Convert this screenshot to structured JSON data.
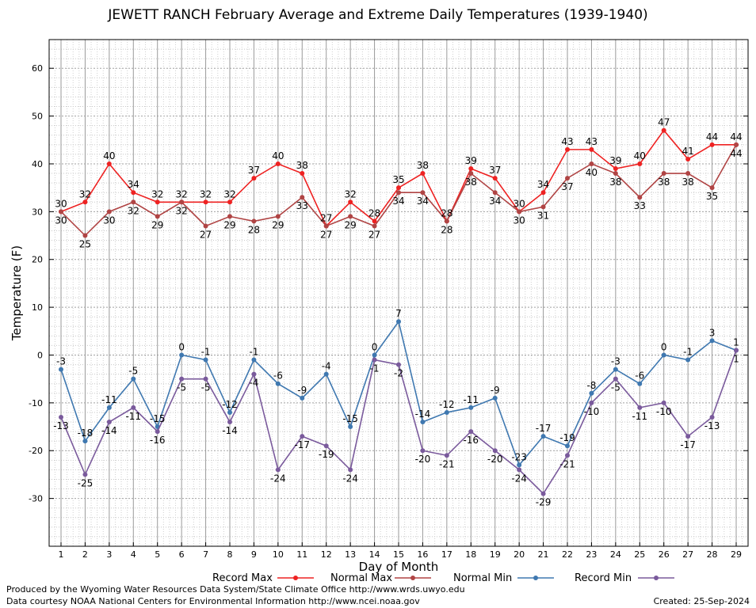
{
  "chart_data": {
    "type": "line",
    "title": "JEWETT RANCH February Average and Extreme Daily Temperatures (1939-1940)",
    "xlabel": "Day of Month",
    "ylabel": "Temperature (F)",
    "ylim": [
      -40,
      66
    ],
    "yticks": [
      60,
      50,
      40,
      30,
      20,
      10,
      0,
      -10,
      -20,
      -30
    ],
    "x": [
      1,
      2,
      3,
      4,
      5,
      6,
      7,
      8,
      9,
      10,
      11,
      12,
      13,
      14,
      15,
      16,
      17,
      18,
      19,
      20,
      21,
      22,
      23,
      24,
      25,
      26,
      27,
      28,
      29
    ],
    "grid": true,
    "legend_position": "bottom",
    "series": [
      {
        "name": "Record Max",
        "color": "#ee2222",
        "values": [
          30,
          32,
          40,
          34,
          32,
          32,
          32,
          32,
          37,
          40,
          38,
          27,
          32,
          28,
          35,
          38,
          28,
          39,
          37,
          30,
          34,
          43,
          43,
          39,
          40,
          47,
          41,
          44,
          44
        ]
      },
      {
        "name": "Normal Max",
        "color": "#b04444",
        "values": [
          30,
          25,
          30,
          32,
          29,
          32,
          27,
          29,
          28,
          29,
          33,
          27,
          29,
          27,
          34,
          34,
          28,
          38,
          34,
          30,
          31,
          37,
          40,
          38,
          33,
          38,
          38,
          35,
          44
        ]
      },
      {
        "name": "Normal Min",
        "color": "#3f78b0",
        "values": [
          -3,
          -18,
          -11,
          -5,
          -15,
          0,
          -1,
          -12,
          -1,
          -6,
          -9,
          -4,
          -15,
          0,
          7,
          -14,
          -12,
          -11,
          -9,
          -23,
          -17,
          -19,
          -8,
          -3,
          -6,
          0,
          -1,
          3,
          1
        ]
      },
      {
        "name": "Record Min",
        "color": "#7a5a9c",
        "values": [
          -13,
          -25,
          -14,
          -11,
          -16,
          -5,
          -5,
          -14,
          -4,
          -24,
          -17,
          -19,
          -24,
          -1,
          -2,
          -20,
          -21,
          -16,
          -20,
          -24,
          -29,
          -21,
          -10,
          -5,
          -11,
          -10,
          -17,
          -13,
          1
        ]
      }
    ]
  },
  "footer": {
    "line1": "Produced by the Wyoming Water Resources Data System/State Climate Office http://www.wrds.uwyo.edu",
    "line2": "Data courtesy NOAA National Centers for Environmental Information http://www.ncei.noaa.gov",
    "created": "Created:  25-Sep-2024"
  }
}
